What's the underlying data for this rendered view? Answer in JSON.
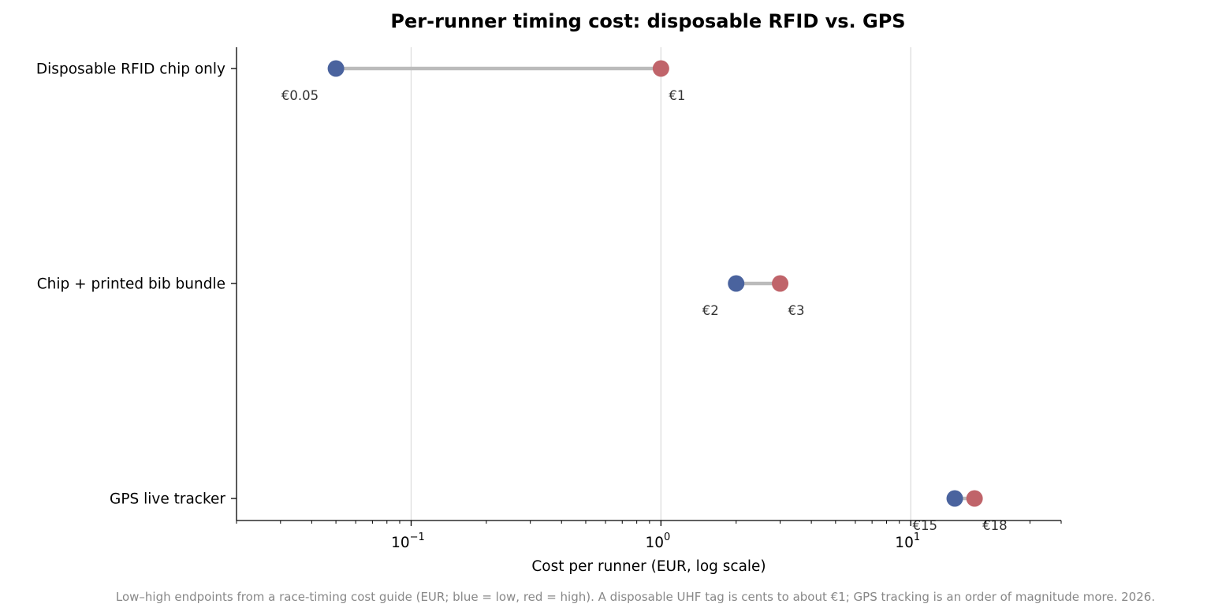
{
  "chart_data": {
    "type": "dumbbell",
    "title": "Per-runner timing cost: disposable RFID vs. GPS",
    "xlabel": "Cost per runner (EUR, log scale)",
    "ylabel": "",
    "x_scale": "log",
    "xlim": [
      0.02,
      40
    ],
    "x_ticks": [
      {
        "value": 0.1,
        "base": "10",
        "exp": "−1"
      },
      {
        "value": 1,
        "base": "10",
        "exp": "0"
      },
      {
        "value": 10,
        "base": "10",
        "exp": "1"
      }
    ],
    "grid": "x-major",
    "categories": [
      "Disposable RFID chip only",
      "Chip + printed bib bundle",
      "GPS live tracker"
    ],
    "series": [
      {
        "key": "low",
        "values": [
          0.05,
          2,
          15
        ],
        "labels": [
          "€0.05",
          "€2",
          "€15"
        ],
        "color": "#4a639e"
      },
      {
        "key": "high",
        "values": [
          1,
          3,
          18
        ],
        "labels": [
          "€1",
          "€3",
          "€18"
        ],
        "color": "#c0646a"
      }
    ],
    "connector_color": "#bbbbbb",
    "caption": "Low–high endpoints from a race-timing cost guide (EUR; blue = low, red = high). A disposable UHF tag is cents to about €1; GPS tracking is an order of magnitude more. 2026."
  }
}
